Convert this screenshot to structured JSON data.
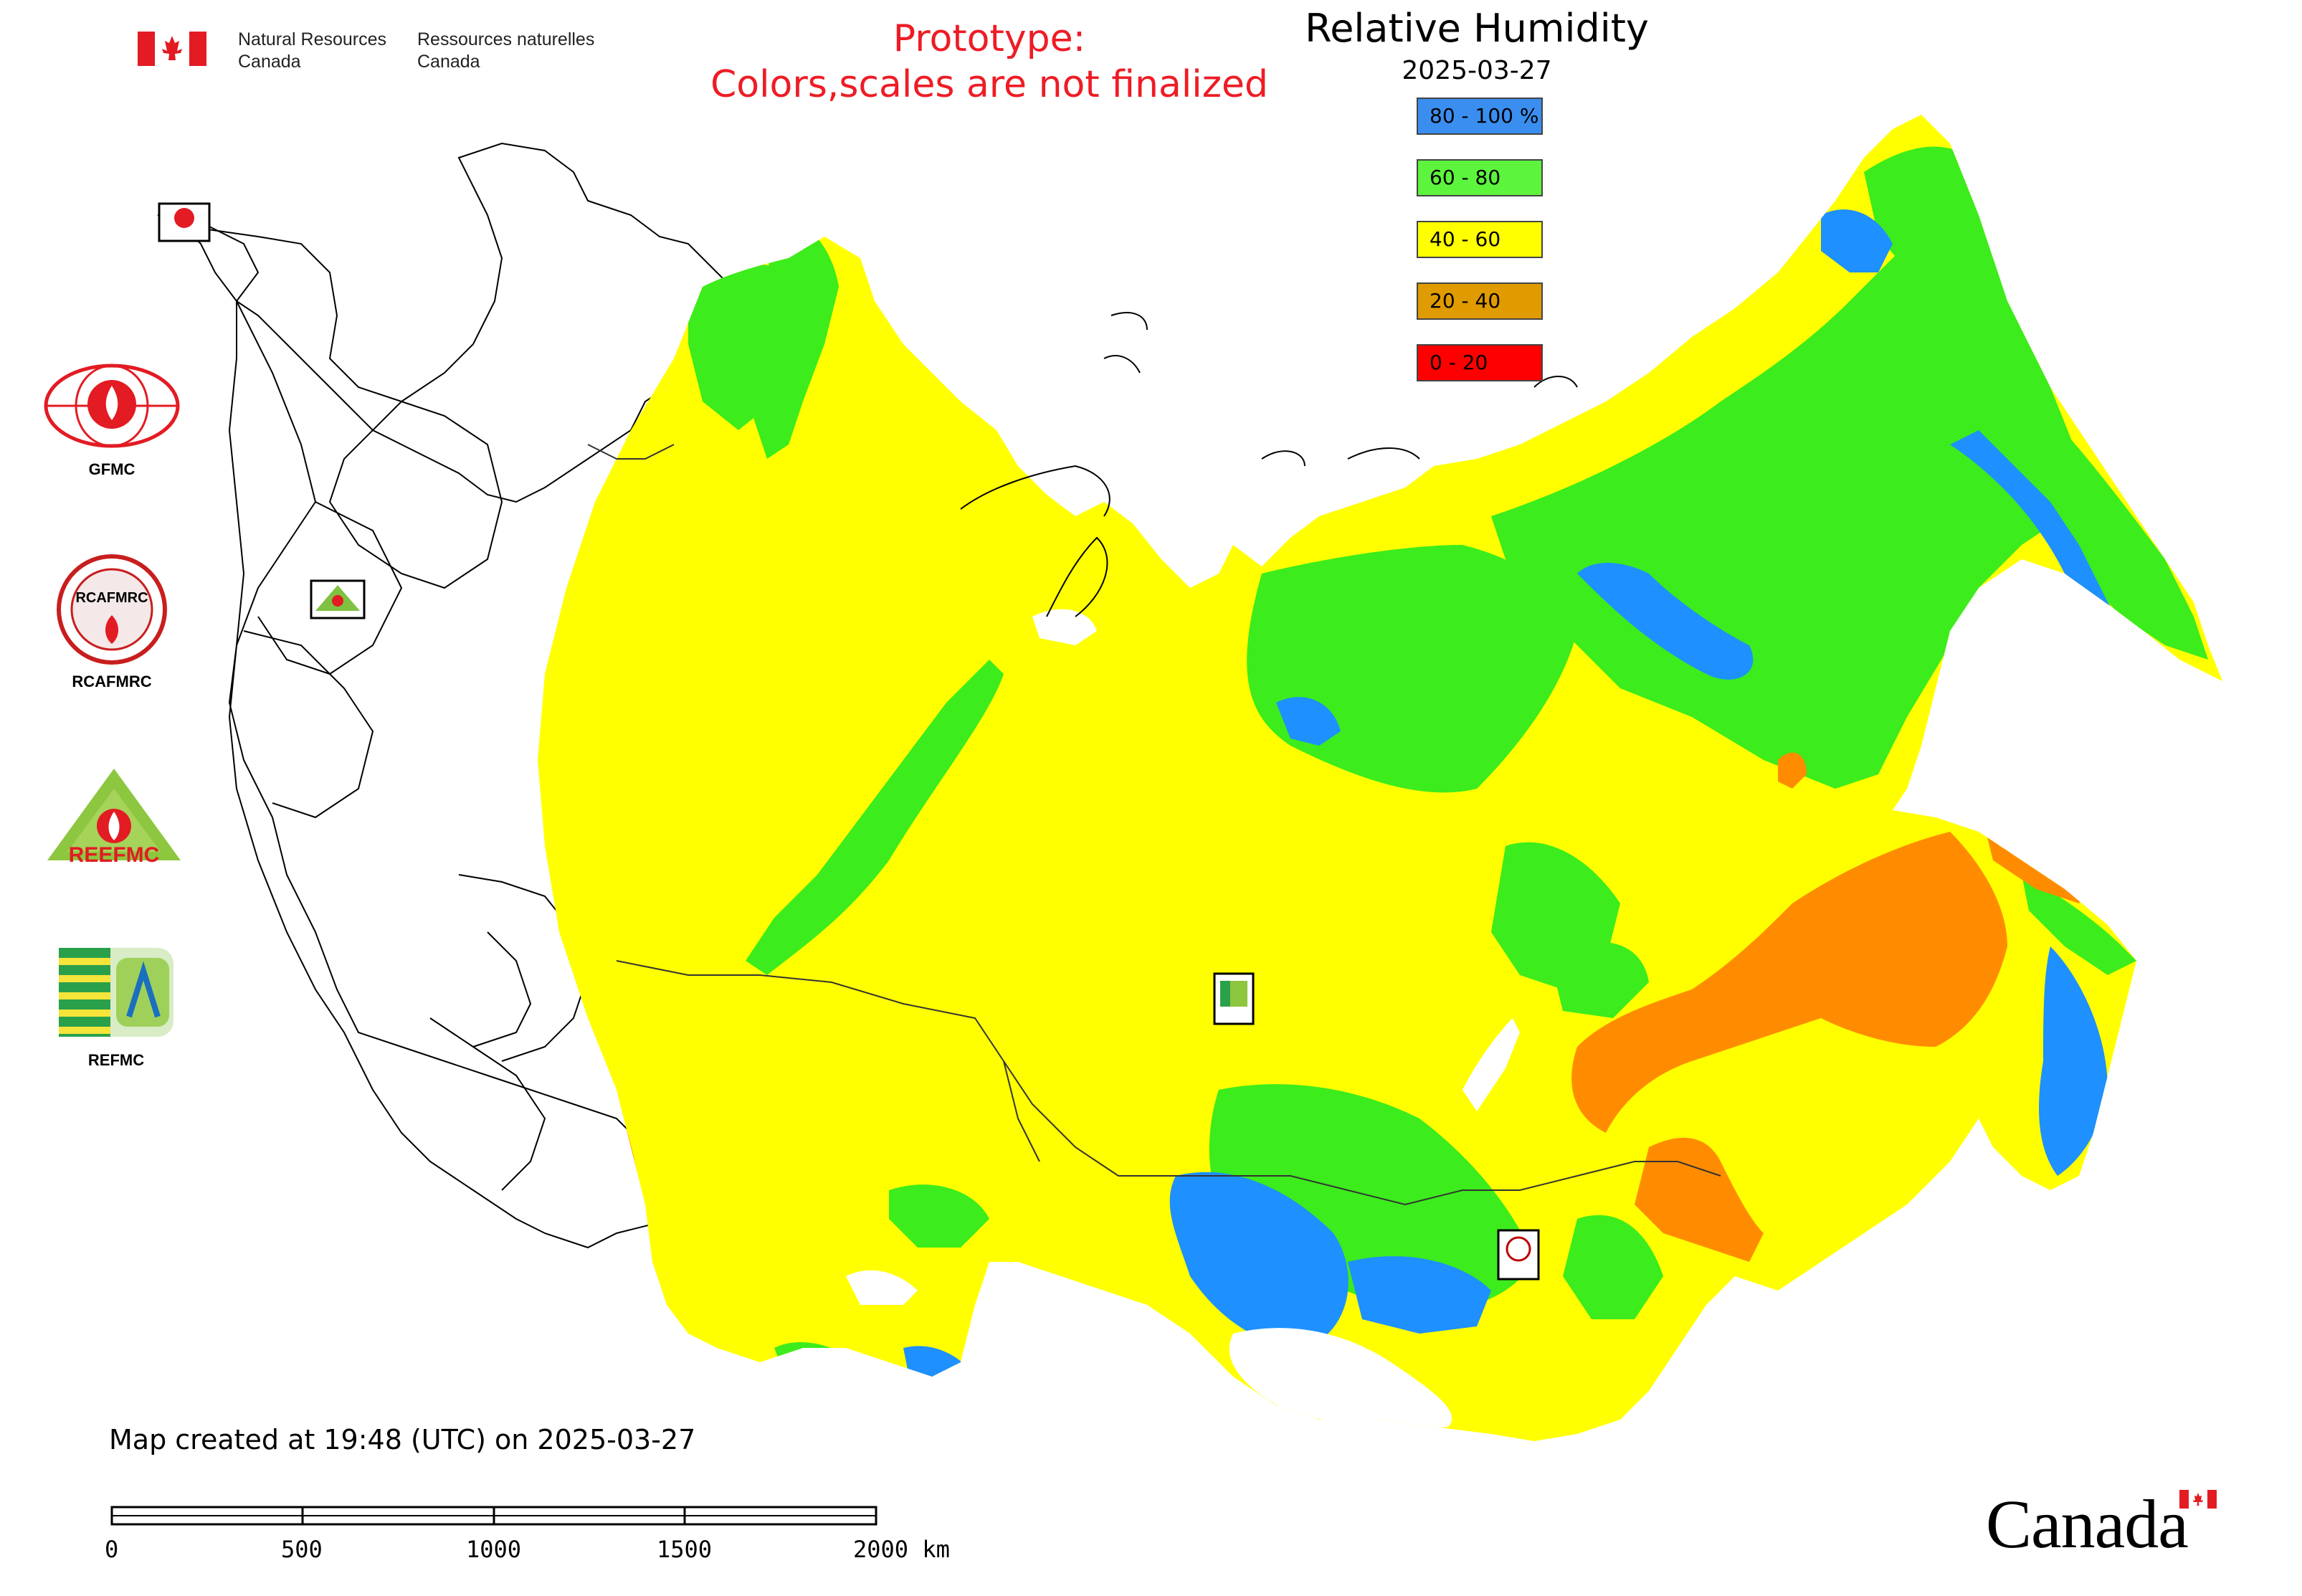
{
  "header": {
    "agency_en_line1": "Natural Resources",
    "agency_en_line2": "Canada",
    "agency_fr_line1": "Ressources naturelles",
    "agency_fr_line2": "Canada",
    "notice_line1": "Prototype:",
    "notice_line2": "Colors,scales are not finalized"
  },
  "map": {
    "title": "Relative Humidity",
    "date": "2025-03-27",
    "legend": [
      {
        "label": "80 - 100 %",
        "color": "#3a8ef0"
      },
      {
        "label": "60 - 80",
        "color": "#5cf43c"
      },
      {
        "label": "40 - 60",
        "color": "#ffff00"
      },
      {
        "label": "20 - 40",
        "color": "#e09b00"
      },
      {
        "label": "0 - 20",
        "color": "#ff0000"
      }
    ],
    "created_text": "Map created at 19:48 (UTC) on 2025-03-27"
  },
  "scale_bar": {
    "labels": [
      "0",
      "500",
      "1000",
      "1500",
      "2000 km"
    ]
  },
  "logos": [
    {
      "label": "GFMC",
      "icon": "gfmc-logo"
    },
    {
      "label": "RCAFMRC",
      "icon": "rcafmrc-logo"
    },
    {
      "label": "REEFMC",
      "icon": "reefmc-logo"
    },
    {
      "label": "REFMC",
      "icon": "refmc-logo"
    }
  ],
  "map_markers": [
    {
      "label": "GFMC",
      "icon": "gfmc-marker-icon"
    },
    {
      "label": "REEFMC",
      "icon": "reefmc-marker-icon"
    },
    {
      "label": "REFMC",
      "icon": "refmc-marker-icon"
    },
    {
      "label": "RCAFMRC",
      "icon": "rcafmrc-marker-icon"
    }
  ],
  "footer": {
    "wordmark": "Canada"
  }
}
